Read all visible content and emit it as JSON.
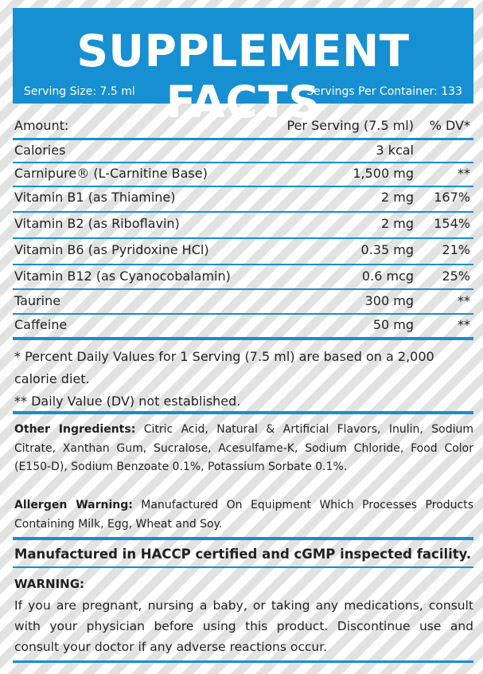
{
  "header": {
    "title": "SUPPLEMENT FACTS",
    "serving_size": "Serving Size: 7.5 ml",
    "servings_per_container": "Servings Per Container: 133"
  },
  "table": {
    "columns": [
      "Amount:",
      "Per Serving (7.5 ml)",
      "% DV*"
    ],
    "rows": [
      [
        "Calories",
        "3 kcal"
      ],
      [
        "Carnipure® (L-Carnitine Base)",
        "1,500 mg",
        "**"
      ],
      [
        "Vitamin B1 (as Thiamine)",
        "2 mg",
        "167%"
      ],
      [
        "Vitamin B2 (as Riboflavin)",
        "2 mg",
        "154%"
      ],
      [
        "Vitamin B6 (as Pyridoxine HCl)",
        "0.35 mg",
        "21%"
      ],
      [
        "Vitamin B12 (as Cyanocobalamin)",
        "0.6 mcg",
        "25%"
      ],
      [
        "Taurine",
        "300 mg",
        "**"
      ],
      [
        "Caffeine",
        "50 mg",
        "**"
      ]
    ]
  },
  "footnotes": [
    "* Percent Daily Values for 1 Serving (7.5 ml) are based on a 2,000 calorie diet.",
    "** Daily Value (DV) not established."
  ],
  "other_ingredients": {
    "label": "Other Ingredients:",
    "text": "Citric Acid, Natural & Artificial Flavors, Inulin, Sodium Citrate, Xanthan Gum, Sucralose, Acesulfame-K, Sodium Chloride, Food Color (E150-D), Sodium Benzoate 0.1%, Potassium Sorbate 0.1%."
  },
  "allergen": {
    "label": "Allergen Warning:",
    "text": "Manufactured On Equipment Which Processes Products Containing Milk, Egg, Wheat and Soy."
  },
  "manufacturing": "Manufactured in HACCP certified and cGMP inspected facility.",
  "warning": {
    "label": "WARNING:",
    "text": "If you are pregnant, nursing a baby, or taking any medications, consult with your physician before using this product. Discontinue use and consult your doctor if any adverse reactions occur."
  }
}
